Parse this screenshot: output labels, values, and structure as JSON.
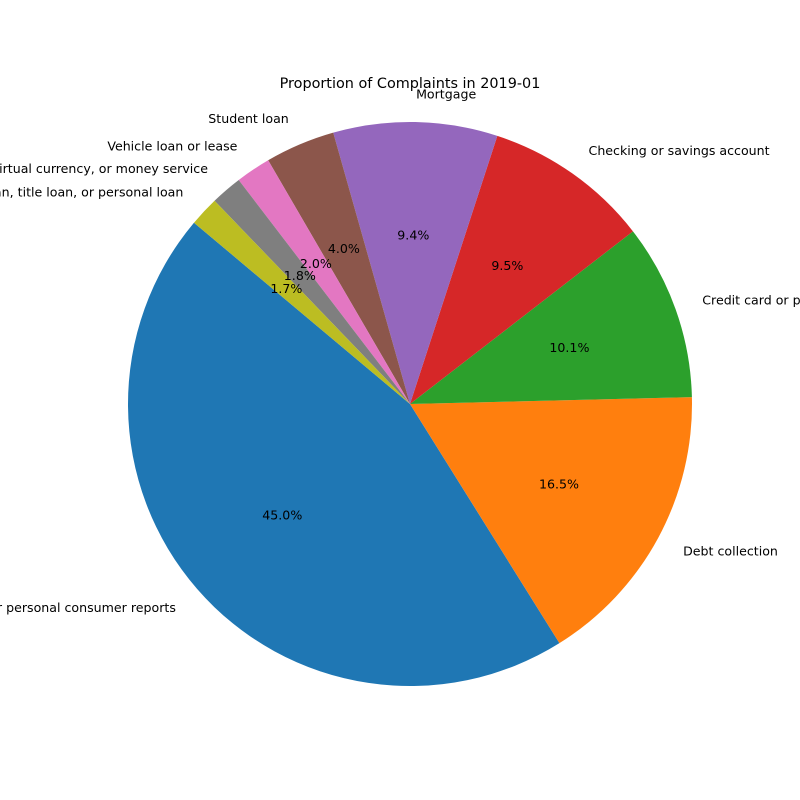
{
  "chart_data": {
    "type": "pie",
    "title": "Proportion of Complaints in 2019-01",
    "start_angle_deg": 140,
    "direction": "counterclockwise",
    "slices": [
      {
        "label": "Credit reporting, credit repair services, or other personal consumer reports",
        "value": 45.0,
        "pct_label": "45.0%",
        "color": "#1f77b4"
      },
      {
        "label": "Debt collection",
        "value": 16.5,
        "pct_label": "16.5%",
        "color": "#ff7f0e"
      },
      {
        "label": "Credit card or prepaid card",
        "value": 10.1,
        "pct_label": "10.1%",
        "color": "#2ca02c"
      },
      {
        "label": "Checking or savings account",
        "value": 9.5,
        "pct_label": "9.5%",
        "color": "#d62728"
      },
      {
        "label": "Mortgage",
        "value": 9.4,
        "pct_label": "9.4%",
        "color": "#9467bd"
      },
      {
        "label": "Student loan",
        "value": 4.0,
        "pct_label": "4.0%",
        "color": "#8c564b"
      },
      {
        "label": "Vehicle loan or lease",
        "value": 2.0,
        "pct_label": "2.0%",
        "color": "#e377c2"
      },
      {
        "label": "Money transfer, virtual currency, or money service",
        "value": 1.8,
        "pct_label": "1.8%",
        "color": "#7f7f7f"
      },
      {
        "label": "Payday loan, title loan, or personal loan",
        "value": 1.7,
        "pct_label": "1.7%",
        "color": "#bcbd22"
      }
    ]
  }
}
